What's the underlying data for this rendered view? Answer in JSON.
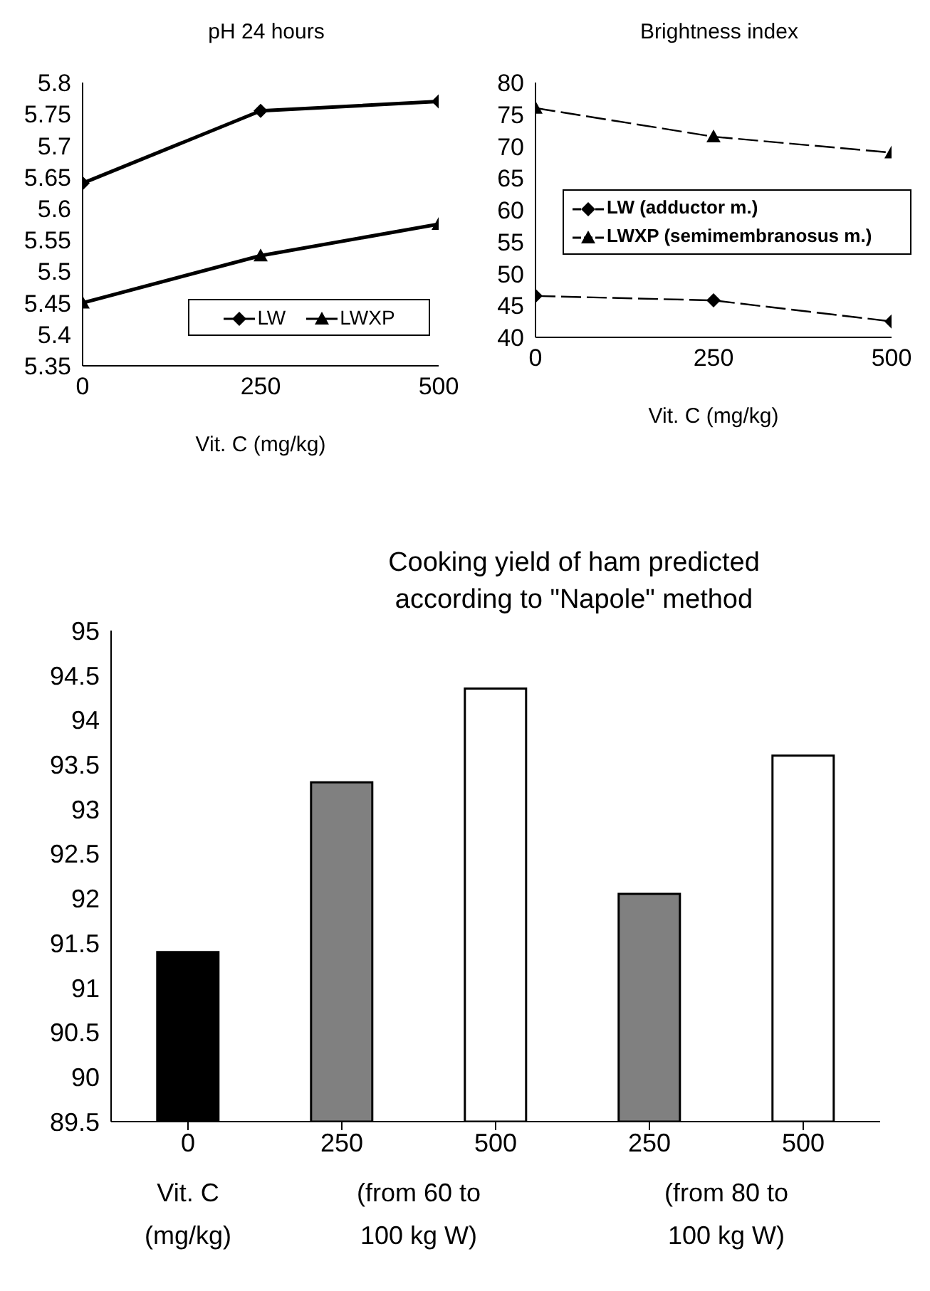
{
  "chart_data": [
    {
      "type": "line",
      "title": "pH 24 hours",
      "xlabel": "Vit. C (mg/kg)",
      "x": [
        0,
        250,
        500
      ],
      "xlim": [
        0,
        500
      ],
      "xticks": [
        0,
        250,
        500
      ],
      "ylim": [
        5.35,
        5.8
      ],
      "yticks": [
        5.35,
        5.4,
        5.45,
        5.5,
        5.55,
        5.6,
        5.65,
        5.7,
        5.75,
        5.8
      ],
      "grid": false,
      "legend": "bottom right",
      "line_style": "solid",
      "series": [
        {
          "name": "LW",
          "color": "#000000",
          "marker": "diamond",
          "values": [
            5.64,
            5.755,
            5.77
          ]
        },
        {
          "name": "LWXP",
          "color": "#000000",
          "marker": "triangle",
          "values": [
            5.45,
            5.525,
            5.575
          ]
        }
      ]
    },
    {
      "type": "line",
      "title": "Brightness index",
      "xlabel": "Vit. C (mg/kg)",
      "x": [
        0,
        250,
        500
      ],
      "xlim": [
        0,
        500
      ],
      "xticks": [
        0,
        250,
        500
      ],
      "ylim": [
        40,
        80
      ],
      "yticks": [
        40,
        45,
        50,
        55,
        60,
        65,
        70,
        75,
        80
      ],
      "grid": false,
      "legend": "right",
      "line_style": "dashed",
      "series": [
        {
          "name": "LW (adductor m.)",
          "color": "#000000",
          "marker": "diamond",
          "values": [
            46.5,
            45.8,
            42.5
          ]
        },
        {
          "name": "LWXP (semimembranosus m.)",
          "color": "#000000",
          "marker": "triangle",
          "values": [
            76,
            71.5,
            69
          ]
        }
      ]
    },
    {
      "type": "bar",
      "title": "Cooking yield of ham predicted according to \"Napole\" method",
      "xlabel": "Vit. C (mg/kg)",
      "categories": [
        "0",
        "250",
        "500",
        "250",
        "500"
      ],
      "values": [
        91.4,
        93.3,
        94.35,
        92.05,
        93.6
      ],
      "colors": [
        "#000000",
        "#808080",
        "#ffffff",
        "#808080",
        "#ffffff"
      ],
      "ylim": [
        89.5,
        95
      ],
      "yticks": [
        89.5,
        90,
        90.5,
        91,
        91.5,
        92,
        92.5,
        93,
        93.5,
        94,
        94.5,
        95
      ],
      "grid": false,
      "legend": false,
      "annotations": [
        "(from 60 to 100 kg W)",
        "(from 80 to 100 kg W)"
      ]
    }
  ]
}
